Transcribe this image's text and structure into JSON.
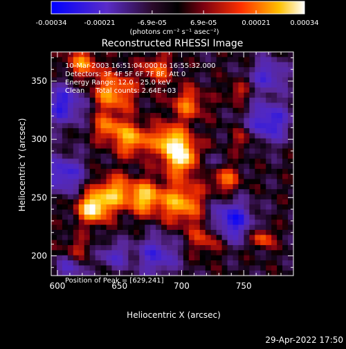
{
  "chart_data": {
    "type": "heatmap",
    "title": "Reconstructed RHESSI Image",
    "xlabel": "Heliocentric X (arcsec)",
    "ylabel": "Heliocentric Y (arcsec)",
    "xlim": [
      595,
      790
    ],
    "ylim": [
      183,
      375
    ],
    "x_ticks": [
      600,
      650,
      700,
      750
    ],
    "y_ticks": [
      200,
      250,
      300,
      350
    ],
    "colorbar": {
      "tick_labels": [
        "-0.00034",
        "-0.00021",
        "-6.9e-05",
        "6.9e-05",
        "0.00021",
        "0.00034"
      ],
      "tick_values": [
        -0.00034,
        -0.00021,
        -6.9e-05,
        6.9e-05,
        0.00021,
        0.00034
      ],
      "range": [
        -0.00034,
        0.00034
      ],
      "unit_label": "(photons cm⁻² s⁻¹ asec⁻²)"
    },
    "annotations": {
      "time_range": "10-Mar-2003 16:51:04.000 to 16:55:32.000",
      "detectors": "Detectors: 3F 4F 5F 6F 7F 8F, Att 0",
      "energy": "Energy Range: 12.0 - 25.0 keV",
      "method": "Clean     Total counts: 2.64E+03",
      "peak": "Position of Peak = [629,241]"
    },
    "peak_position": [
      629,
      241
    ],
    "grid": false
  },
  "footer": {
    "timestamp": "29-Apr-2022 17:50"
  },
  "colors": {
    "background": "#000000",
    "text": "#ffffff"
  }
}
